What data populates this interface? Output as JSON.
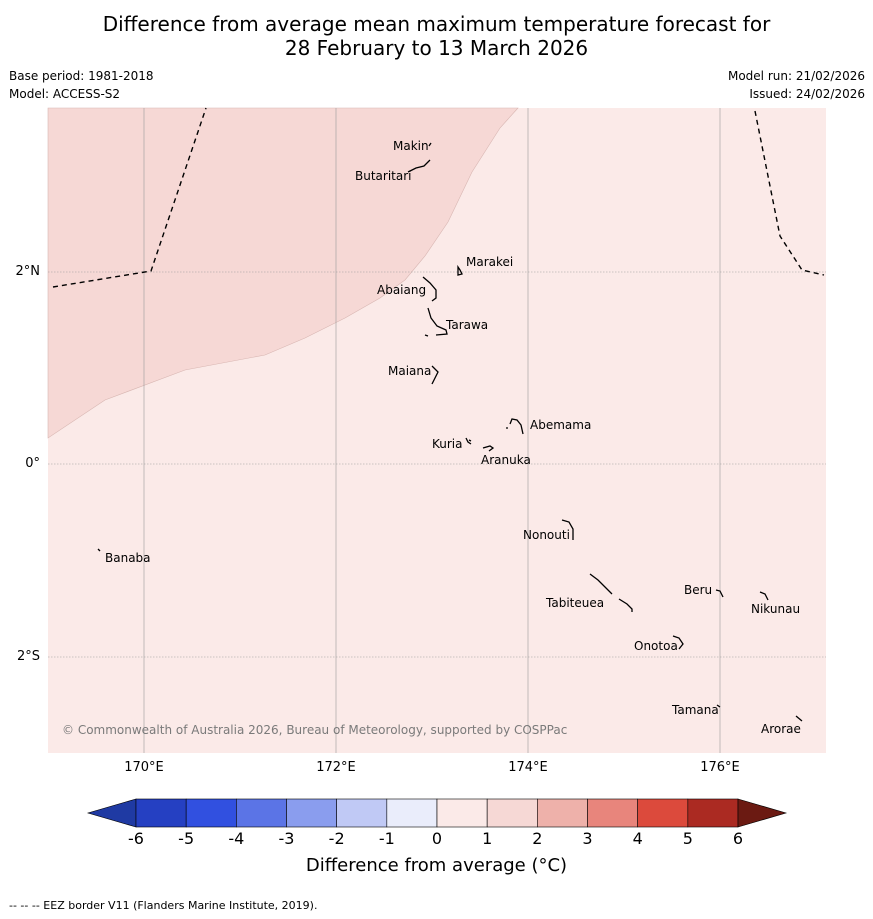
{
  "title": {
    "line1": "Difference from average mean maximum temperature forecast for",
    "line2": "28 February to 13 March 2026"
  },
  "meta": {
    "base_period": "Base period: 1981-2018",
    "model": "Model: ACCESS-S2",
    "model_run": "Model run: 21/02/2026",
    "issued": "Issued: 24/02/2026"
  },
  "map": {
    "lat_labels": [
      "2°N",
      "0°",
      "2°S"
    ],
    "lon_labels": [
      "170°E",
      "172°E",
      "174°E",
      "176°E"
    ],
    "islands": [
      "Makin",
      "Butaritari",
      "Marakei",
      "Abaiang",
      "Tarawa",
      "Maiana",
      "Abemama",
      "Kuria",
      "Aranuka",
      "Nonouti",
      "Banaba",
      "Beru",
      "Nikunau",
      "Tabiteuea",
      "Onotoa",
      "Tamana",
      "Arorae"
    ],
    "copyright": "© Commonwealth of Australia 2026, Bureau of Meteorology, supported by COSPPac",
    "fill_colors": {
      "band_0_1": "#fbeae8",
      "band_1_2": "#f6d8d5"
    }
  },
  "colorbar": {
    "ticks": [
      "-6",
      "-5",
      "-4",
      "-3",
      "-2",
      "-1",
      "0",
      "1",
      "2",
      "3",
      "4",
      "5",
      "6"
    ],
    "colors": [
      "#1f3aa3",
      "#2540c2",
      "#3150e0",
      "#5b74e6",
      "#8a9dee",
      "#c0c9f5",
      "#eaedfb",
      "#fbeae8",
      "#f6d8d5",
      "#eeb1aa",
      "#e8857c",
      "#dc4a3c",
      "#ab2a22",
      "#6b1a12"
    ],
    "label": "Difference from average (°C)"
  },
  "footnote": "--  --  -- EEZ border V11 (Flanders Marine Institute, 2019)."
}
